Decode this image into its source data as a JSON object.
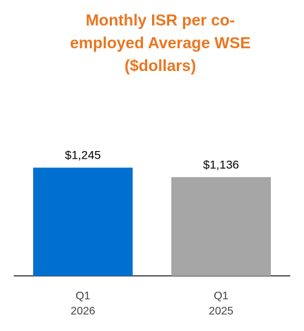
{
  "chart_data": {
    "type": "bar",
    "title": [
      "Monthly ISR per co-",
      "employed Average WSE",
      "($dollars)"
    ],
    "categories": [
      "Q1 2026",
      "Q1 2025"
    ],
    "values": [
      1245,
      1136
    ],
    "value_labels": [
      "$1,245",
      "$1,136"
    ],
    "colors": [
      "#0070d0",
      "#a6a6a6"
    ]
  }
}
